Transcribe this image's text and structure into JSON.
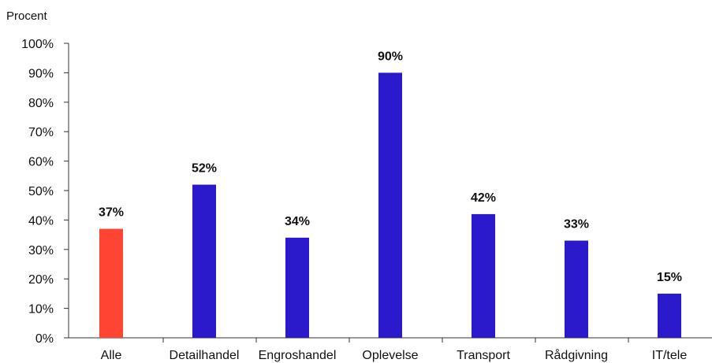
{
  "chart_data": {
    "type": "bar",
    "ylabel": "Procent",
    "categories": [
      "Alle",
      "Detailhandel",
      "Engroshandel",
      "Oplevelse",
      "Transport",
      "Rådgivning",
      "IT/tele"
    ],
    "values": [
      37,
      52,
      34,
      90,
      42,
      33,
      15
    ],
    "data_labels": [
      "37%",
      "52%",
      "34%",
      "90%",
      "42%",
      "33%",
      "15%"
    ],
    "bar_colors": [
      "#ff4433",
      "#2a1acc",
      "#2a1acc",
      "#2a1acc",
      "#2a1acc",
      "#2a1acc",
      "#2a1acc"
    ],
    "ylim": [
      0,
      100
    ],
    "yticks": [
      0,
      10,
      20,
      30,
      40,
      50,
      60,
      70,
      80,
      90,
      100
    ],
    "ytick_labels": [
      "0%",
      "10%",
      "20%",
      "30%",
      "40%",
      "50%",
      "60%",
      "70%",
      "80%",
      "90%",
      "100%"
    ],
    "grid": false,
    "legend": "none"
  }
}
